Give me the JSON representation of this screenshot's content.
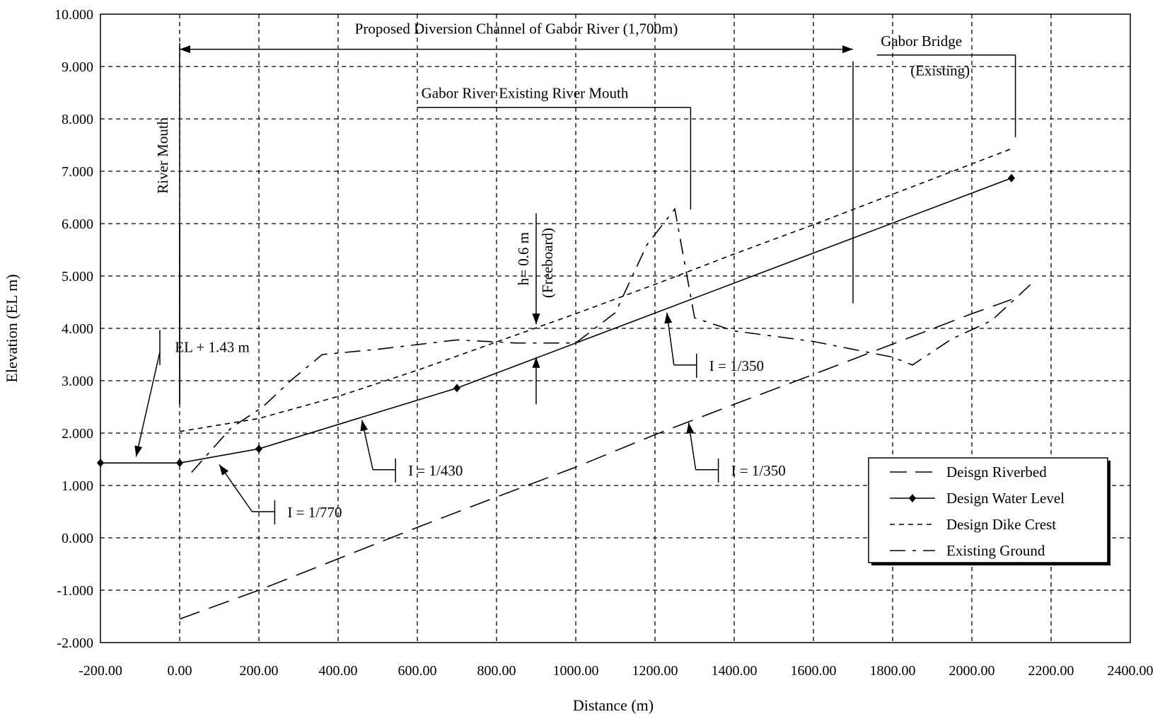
{
  "chart_data": {
    "type": "line",
    "xlabel": "Distance (m)",
    "ylabel": "Elevation (EL m)",
    "xlim": [
      -200,
      2400
    ],
    "ylim": [
      -2,
      10
    ],
    "x_ticks": [
      "-200.00",
      "0.00",
      "200.00",
      "400.00",
      "600.00",
      "800.00",
      "1000.00",
      "1200.00",
      "1400.00",
      "1600.00",
      "1800.00",
      "2000.00",
      "2200.00",
      "2400.00"
    ],
    "y_ticks": [
      "-2.000",
      "-1.000",
      "0.000",
      "1.000",
      "2.000",
      "3.000",
      "4.000",
      "5.000",
      "6.000",
      "7.000",
      "8.000",
      "9.000",
      "10.000"
    ],
    "grid": true,
    "legend_position": "bottom-right",
    "series": [
      {
        "name": "Deisgn Riverbed",
        "style": "long-dash",
        "x": [
          0,
          200,
          400,
          600,
          800,
          1000,
          1200,
          1400,
          1600,
          1800,
          2000,
          2100
        ],
        "y": [
          -1.55,
          -1.0,
          -0.4,
          0.2,
          0.78,
          1.35,
          1.97,
          2.55,
          3.12,
          3.7,
          4.28,
          4.55
        ]
      },
      {
        "name": "Design Water Level",
        "style": "solid-diamond",
        "x": [
          -200,
          0,
          200,
          700,
          2100
        ],
        "y": [
          1.43,
          1.43,
          1.7,
          2.86,
          6.87
        ],
        "markers_x": [
          -200,
          0,
          200,
          700,
          2100
        ]
      },
      {
        "name": "Design Dike Crest",
        "style": "short-dash",
        "x": [
          0,
          200,
          400,
          600,
          800,
          1000,
          1200,
          1400,
          1600,
          1800,
          2000,
          2100
        ],
        "y": [
          2.03,
          2.28,
          2.7,
          3.2,
          3.74,
          4.28,
          4.84,
          5.42,
          5.98,
          6.56,
          7.14,
          7.43
        ]
      },
      {
        "name": "Existing Ground",
        "style": "dash-dot",
        "x": [
          30,
          130,
          210,
          280,
          360,
          500,
          700,
          850,
          1000,
          1100,
          1180,
          1250,
          1300,
          1400,
          1600,
          1800,
          1850,
          1950,
          2050,
          2150
        ],
        "y": [
          1.25,
          2.1,
          2.5,
          3.0,
          3.5,
          3.6,
          3.78,
          3.72,
          3.72,
          4.3,
          5.6,
          6.28,
          4.2,
          3.95,
          3.75,
          3.45,
          3.3,
          3.8,
          4.15,
          4.85
        ]
      }
    ],
    "annotations": {
      "diversion_channel": "Proposed Diversion Channel of Gabor River (1,700m)",
      "existing_mouth": "Gabor River Existing River Mouth",
      "bridge_line1": "Gabor  Bridge",
      "bridge_line2": "(Existing)",
      "river_mouth": "River Mouth",
      "el_label": "EL + 1.43 m",
      "freeboard_h": "h= 0.6 m",
      "freeboard_word": "(Freeboard)",
      "slope_770": "I = 1/770",
      "slope_430": "I = 1/430",
      "slope_350_upper": "I = 1/350",
      "slope_350_lower": "I = 1/350"
    }
  }
}
